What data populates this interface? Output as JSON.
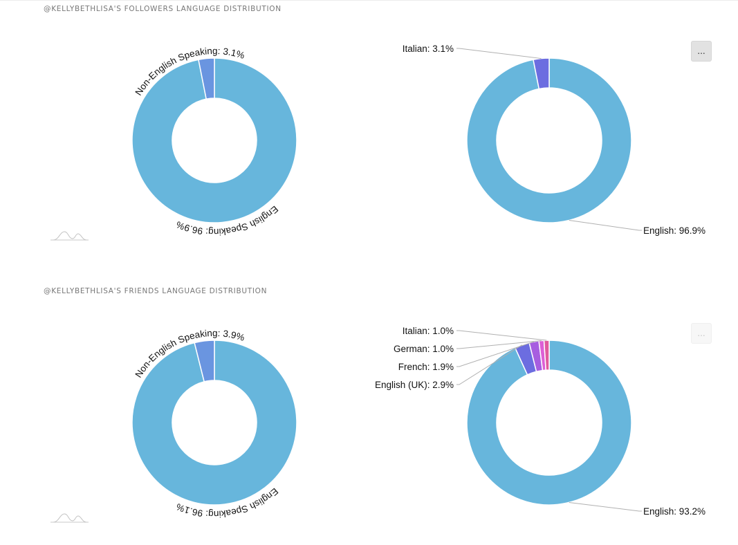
{
  "sections": [
    {
      "title": "@KELLYBETHLISA'S FOLLOWERS LANGUAGE DISTRIBUTION",
      "menu_label": "...",
      "logo_icon": "wave-logo-icon"
    },
    {
      "title": "@KELLYBETHLISA'S FRIENDS LANGUAGE DISTRIBUTION",
      "menu_label": "...",
      "logo_icon": "wave-logo-icon"
    }
  ],
  "colors": {
    "english": "#67b6dc",
    "non_english": "#6a95e0",
    "italian": "#6c6de0",
    "english_uk": "#6c6de0",
    "french": "#a75ee0",
    "german": "#dc5fd6",
    "italian_small": "#e05a9e"
  },
  "chart_data": [
    {
      "type": "pie",
      "donut": true,
      "slices": [
        {
          "name": "English Speaking",
          "value": 96.9,
          "label": "English Speaking: 96.9%",
          "color": "#67b6dc"
        },
        {
          "name": "Non-English Speaking",
          "value": 3.1,
          "label": "Non-English Speaking: 3.1%",
          "color": "#6a95e0"
        }
      ]
    },
    {
      "type": "pie",
      "donut": true,
      "slices": [
        {
          "name": "English",
          "value": 96.9,
          "label": "English: 96.9%",
          "color": "#67b6dc"
        },
        {
          "name": "Italian",
          "value": 3.1,
          "label": "Italian: 3.1%",
          "color": "#6c6de0"
        }
      ]
    },
    {
      "type": "pie",
      "donut": true,
      "slices": [
        {
          "name": "English Speaking",
          "value": 96.1,
          "label": "English Speaking: 96.1%",
          "color": "#67b6dc"
        },
        {
          "name": "Non-English Speaking",
          "value": 3.9,
          "label": "Non-English Speaking: 3.9%",
          "color": "#6a95e0"
        }
      ]
    },
    {
      "type": "pie",
      "donut": true,
      "slices": [
        {
          "name": "English",
          "value": 93.2,
          "label": "English: 93.2%",
          "color": "#67b6dc"
        },
        {
          "name": "English (UK)",
          "value": 2.9,
          "label": "English (UK): 2.9%",
          "color": "#6c6de0"
        },
        {
          "name": "French",
          "value": 1.9,
          "label": "French: 1.9%",
          "color": "#a75ee0"
        },
        {
          "name": "German",
          "value": 1.0,
          "label": "German: 1.0%",
          "color": "#dc5fd6"
        },
        {
          "name": "Italian",
          "value": 1.0,
          "label": "Italian: 1.0%",
          "color": "#e05a9e"
        }
      ]
    }
  ]
}
